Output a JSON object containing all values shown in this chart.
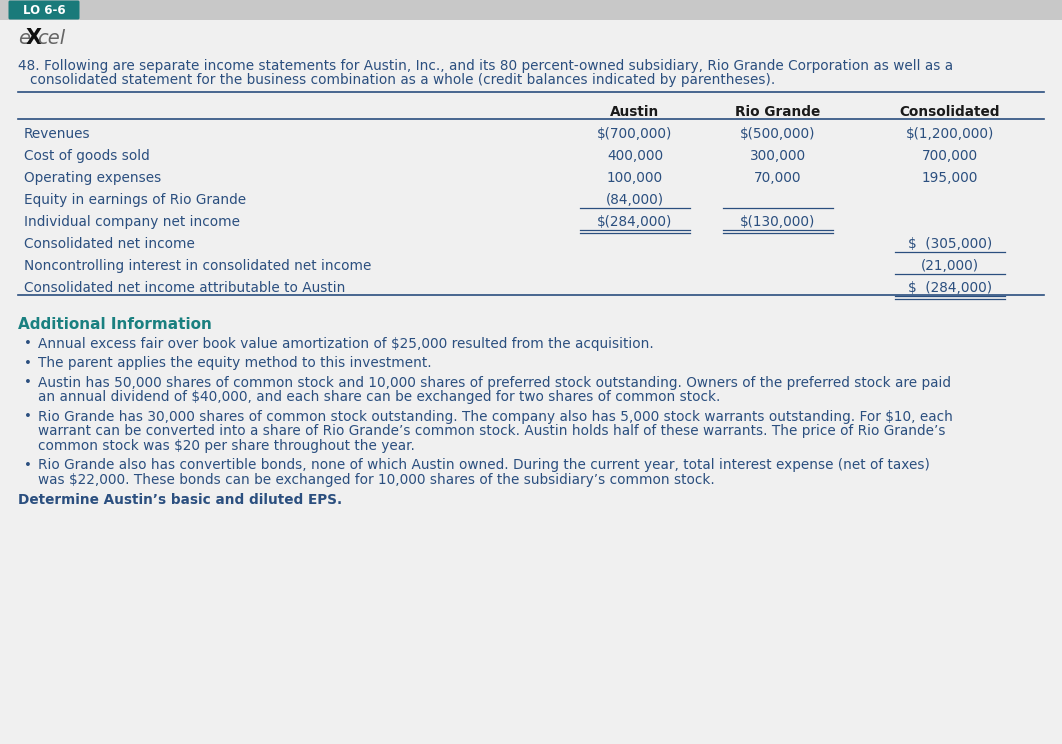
{
  "bg_color": "#f0f0f0",
  "header_bg": "#1a7a7a",
  "header_text": "LO 6-6",
  "header_text_color": "#ffffff",
  "problem_number": "48.",
  "intro_line1": "Following are separate income statements for Austin, Inc., and its 80 percent-owned subsidiary, Rio Grande Corporation as well as a",
  "intro_line2": "consolidated statement for the business combination as a whole (credit balances indicated by parentheses).",
  "col_headers": [
    "Austin",
    "Rio Grande",
    "Consolidated"
  ],
  "rows": [
    {
      "label": "Revenues",
      "austin": "$(700,000)",
      "rio": "$(500,000)",
      "consol": "$(1,200,000)",
      "ul_a": false,
      "ul_r": false,
      "ul_c": false,
      "dbl_a": false,
      "dbl_r": false,
      "dbl_c": false
    },
    {
      "label": "Cost of goods sold",
      "austin": "400,000",
      "rio": "300,000",
      "consol": "700,000",
      "ul_a": false,
      "ul_r": false,
      "ul_c": false,
      "dbl_a": false,
      "dbl_r": false,
      "dbl_c": false
    },
    {
      "label": "Operating expenses",
      "austin": "100,000",
      "rio": "70,000",
      "consol": "195,000",
      "ul_a": false,
      "ul_r": false,
      "ul_c": false,
      "dbl_a": false,
      "dbl_r": false,
      "dbl_c": false
    },
    {
      "label": "Equity in earnings of Rio Grande",
      "austin": "(84,000)",
      "rio": "",
      "consol": "",
      "ul_a": true,
      "ul_r": true,
      "ul_c": false,
      "dbl_a": false,
      "dbl_r": false,
      "dbl_c": false
    },
    {
      "label": "Individual company net income",
      "austin": "$(284,000)",
      "rio": "$(130,000)",
      "consol": "",
      "ul_a": false,
      "ul_r": false,
      "ul_c": false,
      "dbl_a": true,
      "dbl_r": true,
      "dbl_c": false
    },
    {
      "label": "Consolidated net income",
      "austin": "",
      "rio": "",
      "consol": "$  (305,000)",
      "ul_a": false,
      "ul_r": false,
      "ul_c": true,
      "dbl_a": false,
      "dbl_r": false,
      "dbl_c": false
    },
    {
      "label": "Noncontrolling interest in consolidated net income",
      "austin": "",
      "rio": "",
      "consol": "(21,000)",
      "ul_a": false,
      "ul_r": false,
      "ul_c": true,
      "dbl_a": false,
      "dbl_r": false,
      "dbl_c": false
    },
    {
      "label": "Consolidated net income attributable to Austin",
      "austin": "",
      "rio": "",
      "consol": "$  (284,000)",
      "ul_a": false,
      "ul_r": false,
      "ul_c": false,
      "dbl_a": false,
      "dbl_r": false,
      "dbl_c": true
    }
  ],
  "text_color": "#2b4f7f",
  "header_color": "#1a1a1a",
  "additional_info_title": "Additional Information",
  "additional_info_color": "#1a8080",
  "bullet_items": [
    [
      "Annual excess fair over book value amortization of $25,000 resulted from the acquisition."
    ],
    [
      "The parent applies the equity method to this investment."
    ],
    [
      "Austin has 50,000 shares of common stock and 10,000 shares of preferred stock outstanding. Owners of the preferred stock are paid",
      "an annual dividend of $40,000, and each share can be exchanged for two shares of common stock."
    ],
    [
      "Rio Grande has 30,000 shares of common stock outstanding. The company also has 5,000 stock warrants outstanding. For $10, each",
      "warrant can be converted into a share of Rio Grande’s common stock. Austin holds half of these warrants. The price of Rio Grande’s",
      "common stock was $20 per share throughout the year."
    ],
    [
      "Rio Grande also has convertible bonds, none of which Austin owned. During the current year, total interest expense (net of taxes)",
      "was $22,000. These bonds can be exchanged for 10,000 shares of the subsidiary’s common stock."
    ]
  ],
  "conclude_text": "Determine Austin’s basic and diluted EPS."
}
